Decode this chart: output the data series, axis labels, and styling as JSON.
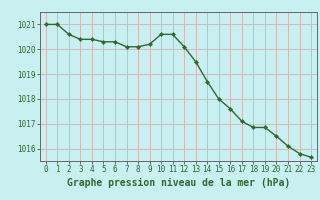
{
  "x": [
    0,
    1,
    2,
    3,
    4,
    5,
    6,
    7,
    8,
    9,
    10,
    11,
    12,
    13,
    14,
    15,
    16,
    17,
    18,
    19,
    20,
    21,
    22,
    23
  ],
  "y": [
    1021.0,
    1021.0,
    1020.6,
    1020.4,
    1020.4,
    1020.3,
    1020.3,
    1020.1,
    1020.1,
    1020.2,
    1020.6,
    1020.6,
    1020.1,
    1019.5,
    1018.7,
    1018.0,
    1017.6,
    1017.1,
    1016.85,
    1016.85,
    1016.5,
    1016.1,
    1015.8,
    1015.65
  ],
  "line_color": "#2d6a2d",
  "marker_color": "#2d6a2d",
  "bg_color": "#c8f0f0",
  "grid_color": "#d4b8b8",
  "title": "Graphe pression niveau de la mer (hPa)",
  "title_color": "#2d6a2d",
  "ylim_min": 1015.5,
  "ylim_max": 1021.5,
  "yticks": [
    1016,
    1017,
    1018,
    1019,
    1020,
    1021
  ],
  "xticks": [
    0,
    1,
    2,
    3,
    4,
    5,
    6,
    7,
    8,
    9,
    10,
    11,
    12,
    13,
    14,
    15,
    16,
    17,
    18,
    19,
    20,
    21,
    22,
    23
  ],
  "tick_fontsize": 5.5,
  "title_fontsize": 7.0,
  "axis_color": "#2d6a2d",
  "spine_color": "#666666",
  "xlim_min": -0.5,
  "xlim_max": 23.5
}
